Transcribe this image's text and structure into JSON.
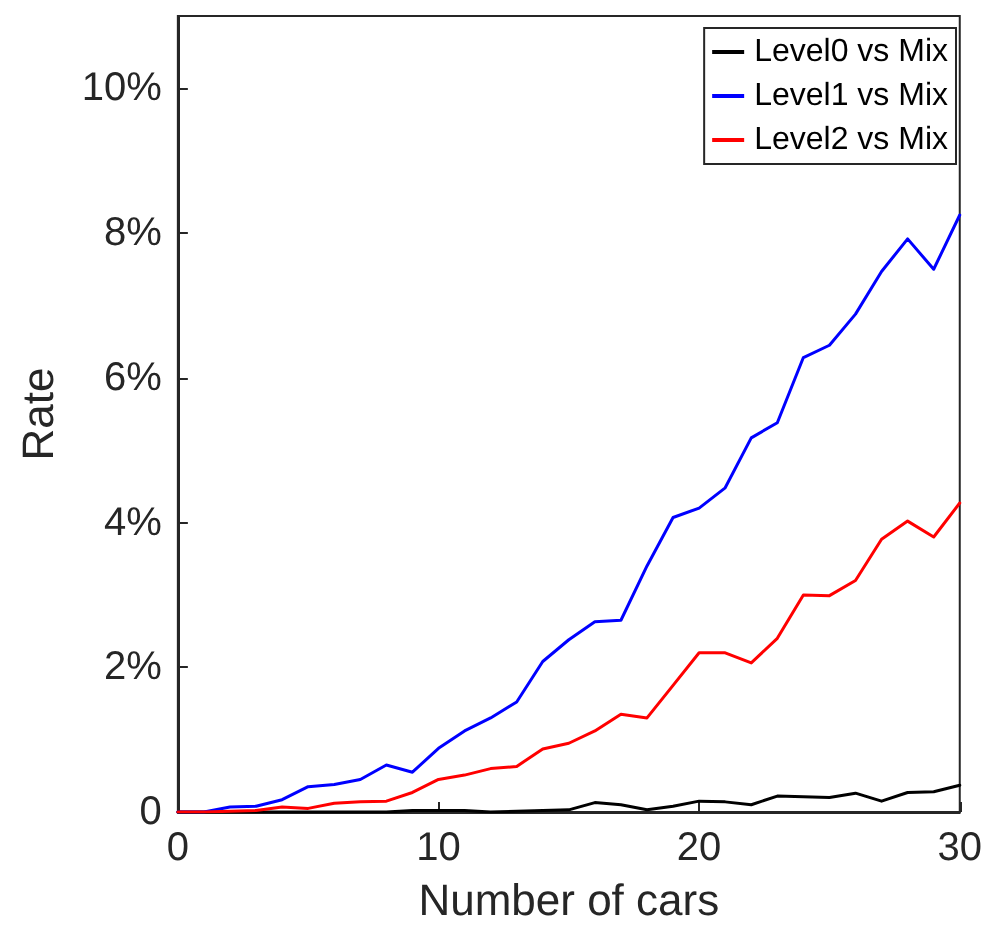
{
  "chart_data": {
    "type": "line",
    "xlabel": "Number of cars",
    "ylabel": "Rate",
    "x": [
      0,
      1,
      2,
      3,
      4,
      5,
      6,
      7,
      8,
      9,
      10,
      11,
      12,
      13,
      14,
      15,
      16,
      17,
      18,
      19,
      20,
      21,
      22,
      23,
      24,
      25,
      26,
      27,
      28,
      29,
      30
    ],
    "series": [
      {
        "name": "Level0 vs Mix",
        "color": "#000000",
        "values": [
          0,
          0,
          0,
          0,
          0,
          0,
          0,
          0,
          0,
          0.02,
          0.02,
          0.02,
          0,
          0.01,
          0.02,
          0.03,
          0.13,
          0.1,
          0.03,
          0.08,
          0.15,
          0.14,
          0.1,
          0.22,
          0.21,
          0.2,
          0.26,
          0.15,
          0.27,
          0.28,
          0.37
        ]
      },
      {
        "name": "Level1 vs Mix",
        "color": "#0000ff",
        "values": [
          0,
          0,
          0.07,
          0.08,
          0.17,
          0.35,
          0.38,
          0.45,
          0.65,
          0.55,
          0.88,
          1.12,
          1.3,
          1.52,
          2.08,
          2.38,
          2.63,
          2.65,
          3.4,
          4.07,
          4.2,
          4.48,
          5.17,
          5.38,
          6.28,
          6.45,
          6.88,
          7.47,
          7.92,
          7.5,
          8.25
        ]
      },
      {
        "name": "Level2 vs Mix",
        "color": "#ff0000",
        "values": [
          0,
          0,
          0.01,
          0.02,
          0.07,
          0.05,
          0.12,
          0.14,
          0.15,
          0.27,
          0.45,
          0.51,
          0.6,
          0.63,
          0.87,
          0.95,
          1.12,
          1.35,
          1.3,
          1.75,
          2.2,
          2.2,
          2.06,
          2.4,
          3,
          2.99,
          3.2,
          3.77,
          4.02,
          3.8,
          4.27
        ]
      }
    ],
    "xlim": [
      0,
      30
    ],
    "xticks": [
      0,
      10,
      20,
      30
    ],
    "ylim": [
      0,
      11
    ],
    "yticks": [
      0,
      {
        "value": 2,
        "label": "2%"
      },
      {
        "value": 4,
        "label": "4%"
      },
      {
        "value": 6,
        "label": "6%"
      },
      {
        "value": 8,
        "label": "8%"
      },
      {
        "value": 10,
        "label": "10%"
      }
    ],
    "grid": false,
    "legend": "top right",
    "marker": "none",
    "line_style": "solid"
  }
}
